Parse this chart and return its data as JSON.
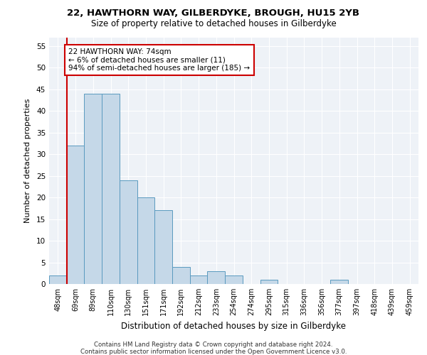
{
  "title1": "22, HAWTHORN WAY, GILBERDYKE, BROUGH, HU15 2YB",
  "title2": "Size of property relative to detached houses in Gilberdyke",
  "xlabel": "Distribution of detached houses by size in Gilberdyke",
  "ylabel": "Number of detached properties",
  "footnote1": "Contains HM Land Registry data © Crown copyright and database right 2024.",
  "footnote2": "Contains public sector information licensed under the Open Government Licence v3.0.",
  "categories": [
    "48sqm",
    "69sqm",
    "89sqm",
    "110sqm",
    "130sqm",
    "151sqm",
    "171sqm",
    "192sqm",
    "212sqm",
    "233sqm",
    "254sqm",
    "274sqm",
    "295sqm",
    "315sqm",
    "336sqm",
    "356sqm",
    "377sqm",
    "397sqm",
    "418sqm",
    "439sqm",
    "459sqm"
  ],
  "values": [
    2,
    32,
    44,
    44,
    24,
    20,
    17,
    4,
    2,
    3,
    2,
    0,
    1,
    0,
    0,
    0,
    1,
    0,
    0,
    0,
    0
  ],
  "bar_color": "#c5d8e8",
  "bar_edge_color": "#5a9abf",
  "ylim": [
    0,
    57
  ],
  "yticks": [
    0,
    5,
    10,
    15,
    20,
    25,
    30,
    35,
    40,
    45,
    50,
    55
  ],
  "property_line_x": 0.5,
  "annotation_text": "22 HAWTHORN WAY: 74sqm\n← 6% of detached houses are smaller (11)\n94% of semi-detached houses are larger (185) →",
  "annotation_box_color": "#ffffff",
  "annotation_box_edge_color": "#cc0000",
  "property_line_color": "#cc0000",
  "background_color": "#eef2f7"
}
